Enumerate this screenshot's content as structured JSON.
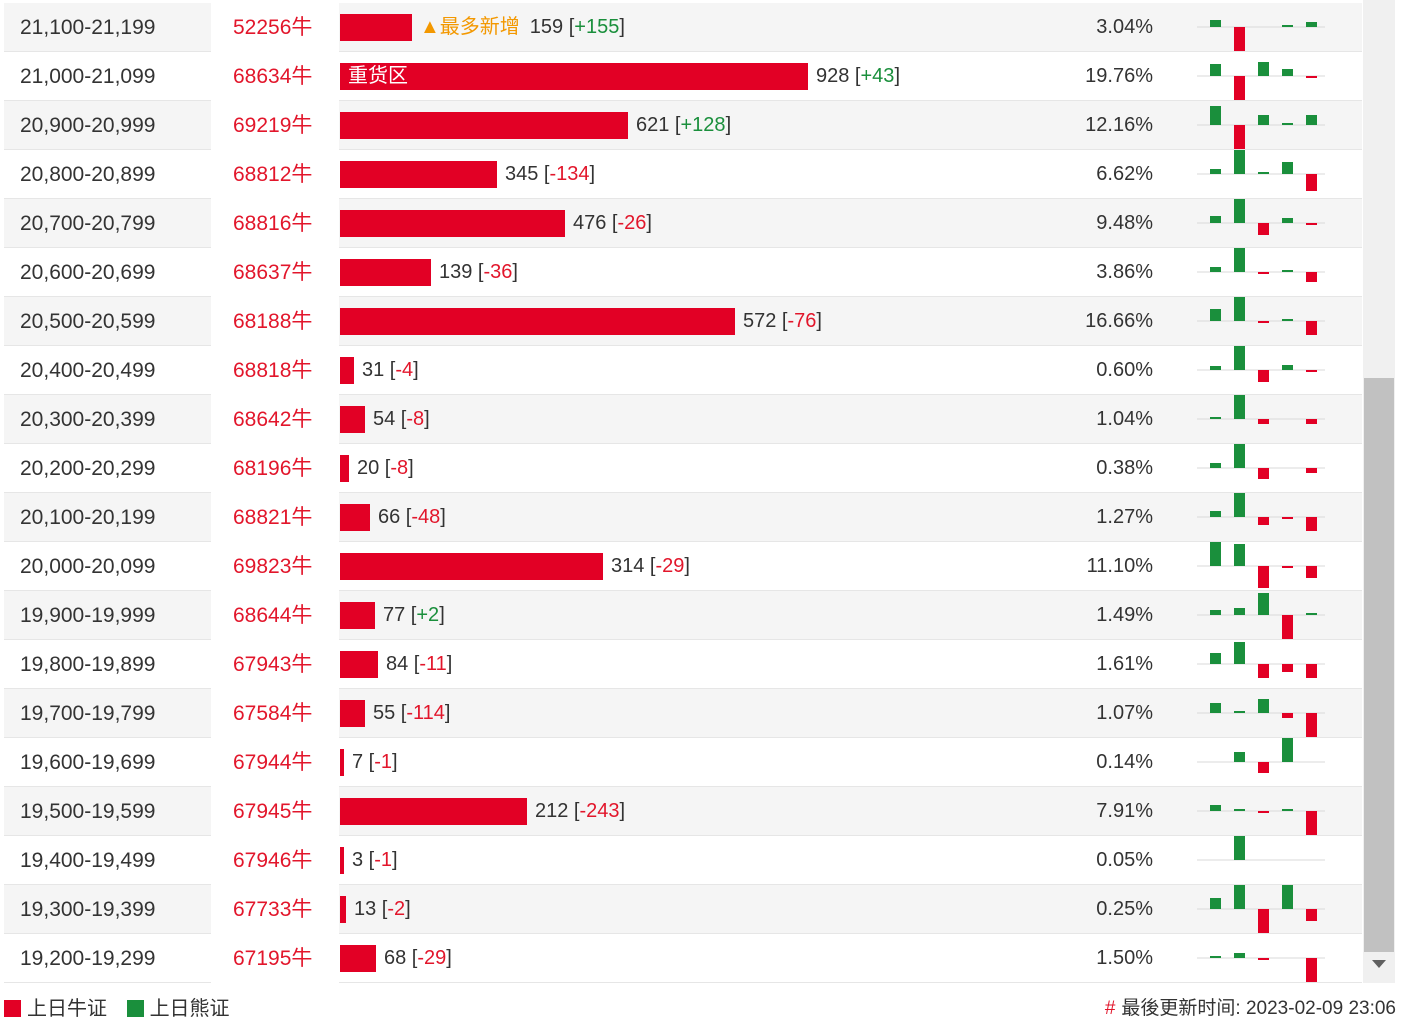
{
  "colors": {
    "bull": "#e20025",
    "bear": "#1a8f3c",
    "accent": "#f39800"
  },
  "unit_suffix": "牛",
  "rows": [
    {
      "range": "21,100-21,199",
      "code": "52256",
      "count": "159",
      "change": "+155",
      "pct": "3.04%",
      "share": 0.0304,
      "tag": "▲最多新增",
      "label": "",
      "spark": [
        0.3,
        -1,
        0,
        0.1,
        0.2
      ]
    },
    {
      "range": "21,000-21,099",
      "code": "68634",
      "count": "928",
      "change": "+43",
      "pct": "19.76%",
      "share": 0.1976,
      "tag": "",
      "label": "重货区",
      "spark": [
        0.5,
        -1,
        0.6,
        0.3,
        -0.05
      ]
    },
    {
      "range": "20,900-20,999",
      "code": "69219",
      "count": "621",
      "change": "+128",
      "pct": "12.16%",
      "share": 0.1216,
      "tag": "",
      "label": "",
      "spark": [
        0.8,
        -1,
        0.4,
        0.05,
        0.4
      ]
    },
    {
      "range": "20,800-20,899",
      "code": "68812",
      "count": "345",
      "change": "-134",
      "pct": "6.62%",
      "share": 0.0662,
      "tag": "",
      "label": "",
      "spark": [
        0.2,
        1,
        0.1,
        0.5,
        -0.7
      ]
    },
    {
      "range": "20,700-20,799",
      "code": "68816",
      "count": "476",
      "change": "-26",
      "pct": "9.48%",
      "share": 0.0948,
      "tag": "",
      "label": "",
      "spark": [
        0.3,
        1,
        -0.5,
        0.2,
        -0.1
      ]
    },
    {
      "range": "20,600-20,699",
      "code": "68637",
      "count": "139",
      "change": "-36",
      "pct": "3.86%",
      "share": 0.0386,
      "tag": "",
      "label": "",
      "spark": [
        0.2,
        1,
        -0.1,
        0.05,
        -0.4
      ]
    },
    {
      "range": "20,500-20,599",
      "code": "68188",
      "count": "572",
      "change": "-76",
      "pct": "16.66%",
      "share": 0.1666,
      "tag": "",
      "label": "",
      "spark": [
        0.5,
        1,
        -0.1,
        0.05,
        -0.6
      ]
    },
    {
      "range": "20,400-20,499",
      "code": "68818",
      "count": "31",
      "change": "-4",
      "pct": "0.60%",
      "share": 0.006,
      "tag": "",
      "label": "",
      "spark": [
        0.15,
        1,
        -0.5,
        0.2,
        -0.1
      ]
    },
    {
      "range": "20,300-20,399",
      "code": "68642",
      "count": "54",
      "change": "-8",
      "pct": "1.04%",
      "share": 0.0104,
      "tag": "",
      "label": "",
      "spark": [
        0.1,
        1,
        -0.2,
        0,
        -0.2
      ]
    },
    {
      "range": "20,200-20,299",
      "code": "68196",
      "count": "20",
      "change": "-8",
      "pct": "0.38%",
      "share": 0.0038,
      "tag": "",
      "label": "",
      "spark": [
        0.2,
        1,
        -0.45,
        0,
        -0.2
      ]
    },
    {
      "range": "20,100-20,199",
      "code": "68821",
      "count": "66",
      "change": "-48",
      "pct": "1.27%",
      "share": 0.0127,
      "tag": "",
      "label": "",
      "spark": [
        0.25,
        1,
        -0.35,
        -0.1,
        -0.6
      ]
    },
    {
      "range": "20,000-20,099",
      "code": "69823",
      "count": "314",
      "change": "-29",
      "pct": "11.10%",
      "share": 0.111,
      "tag": "",
      "label": "",
      "spark": [
        1,
        0.9,
        -0.9,
        -0.1,
        -0.5
      ]
    },
    {
      "range": "19,900-19,999",
      "code": "68644",
      "count": "77",
      "change": "+2",
      "pct": "1.49%",
      "share": 0.0149,
      "tag": "",
      "label": "",
      "spark": [
        0.2,
        0.3,
        0.9,
        -1,
        0.05
      ]
    },
    {
      "range": "19,800-19,899",
      "code": "67943",
      "count": "84",
      "change": "-11",
      "pct": "1.61%",
      "share": 0.0161,
      "tag": "",
      "label": "",
      "spark": [
        0.45,
        0.9,
        -0.6,
        -0.35,
        -0.6
      ]
    },
    {
      "range": "19,700-19,799",
      "code": "67584",
      "count": "55",
      "change": "-114",
      "pct": "1.07%",
      "share": 0.0107,
      "tag": "",
      "label": "",
      "spark": [
        0.4,
        0.1,
        0.6,
        -0.2,
        -1
      ]
    },
    {
      "range": "19,600-19,699",
      "code": "67944",
      "count": "7",
      "change": "-1",
      "pct": "0.14%",
      "share": 0.0014,
      "tag": "",
      "label": "",
      "spark": [
        0,
        0.4,
        -0.45,
        1,
        0
      ]
    },
    {
      "range": "19,500-19,599",
      "code": "67945",
      "count": "212",
      "change": "-243",
      "pct": "7.91%",
      "share": 0.0791,
      "tag": "",
      "label": "",
      "spark": [
        0.25,
        0.1,
        -0.05,
        0.1,
        -1
      ]
    },
    {
      "range": "19,400-19,499",
      "code": "67946",
      "count": "3",
      "change": "-1",
      "pct": "0.05%",
      "share": 0.0005,
      "tag": "",
      "label": "",
      "spark": [
        0,
        1,
        0,
        0,
        0
      ]
    },
    {
      "range": "19,300-19,399",
      "code": "67733",
      "count": "13",
      "change": "-2",
      "pct": "0.25%",
      "share": 0.0025,
      "tag": "",
      "label": "",
      "spark": [
        0.45,
        1,
        -1,
        1,
        -0.5
      ]
    },
    {
      "range": "19,200-19,299",
      "code": "67195",
      "count": "68",
      "change": "-29",
      "pct": "1.50%",
      "share": 0.015,
      "tag": "",
      "label": "",
      "spark": [
        0.1,
        0.2,
        -0.1,
        0,
        -1
      ]
    }
  ],
  "legend": {
    "bull_label": "上日牛证",
    "bear_label": "上日熊证"
  },
  "footer": {
    "hash": "#",
    "updated_label": "最後更新时间: 2023-02-09 23:06"
  }
}
